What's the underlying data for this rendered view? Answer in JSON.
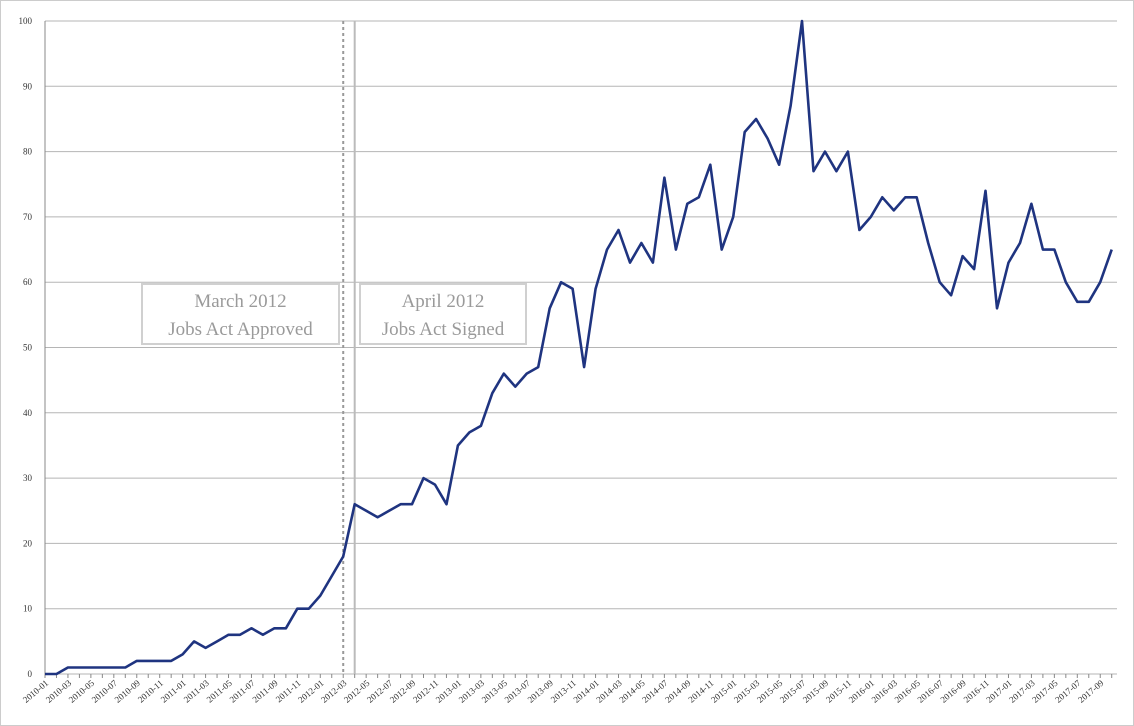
{
  "chart_data": {
    "type": "line",
    "categories": [
      "2010-01",
      null,
      "2010-03",
      null,
      "2010-05",
      null,
      "2010-07",
      null,
      "2010-09",
      null,
      "2010-11",
      null,
      "2011-01",
      null,
      "2011-03",
      null,
      "2011-05",
      null,
      "2011-07",
      null,
      "2011-09",
      null,
      "2011-11",
      null,
      "2012-01",
      null,
      "2012-03",
      null,
      "2012-05",
      null,
      "2012-07",
      null,
      "2012-09",
      null,
      "2012-11",
      null,
      "2013-01",
      null,
      "2013-03",
      null,
      "2013-05",
      null,
      "2013-07",
      null,
      "2013-09",
      null,
      "2013-11",
      null,
      "2014-01",
      null,
      "2014-03",
      null,
      "2014-05",
      null,
      "2014-07",
      null,
      "2014-09",
      null,
      "2014-11",
      null,
      "2015-01",
      null,
      "2015-03",
      null,
      "2015-05",
      null,
      "2015-07",
      null,
      "2015-09",
      null,
      "2015-11",
      null,
      "2016-01",
      null,
      "2016-03",
      null,
      "2016-05",
      null,
      "2016-07",
      null,
      "2016-09",
      null,
      "2016-11",
      null,
      "2017-01",
      null,
      "2017-03",
      null,
      "2017-05",
      null,
      "2017-07",
      null,
      "2017-09",
      null
    ],
    "series": [
      {
        "color": "#1f3480",
        "values": [
          0,
          0,
          1,
          1,
          1,
          1,
          1,
          1,
          2,
          2,
          2,
          2,
          3,
          5,
          4,
          5,
          6,
          6,
          7,
          6,
          7,
          7,
          10,
          10,
          12,
          15,
          18,
          26,
          25,
          24,
          25,
          26,
          26,
          30,
          29,
          26,
          35,
          37,
          38,
          43,
          46,
          44,
          46,
          47,
          56,
          60,
          59,
          47,
          59,
          65,
          68,
          63,
          66,
          63,
          76,
          65,
          72,
          73,
          78,
          65,
          70,
          83,
          85,
          82,
          78,
          87,
          100,
          77,
          80,
          77,
          80,
          68,
          70,
          73,
          71,
          73,
          73,
          66,
          60,
          58,
          64,
          62,
          74,
          56,
          63,
          66,
          72,
          65,
          65,
          60,
          57,
          57,
          60,
          65
        ]
      }
    ],
    "ylim": [
      0,
      100
    ],
    "yticks": [
      0,
      10,
      20,
      30,
      40,
      50,
      60,
      70,
      80,
      90,
      100
    ],
    "grid": true,
    "annotations": [
      {
        "lines": [
          "March 2012",
          "Jobs Act Approved"
        ]
      },
      {
        "lines": [
          "April 2012",
          "Jobs Act Signed"
        ]
      }
    ]
  }
}
